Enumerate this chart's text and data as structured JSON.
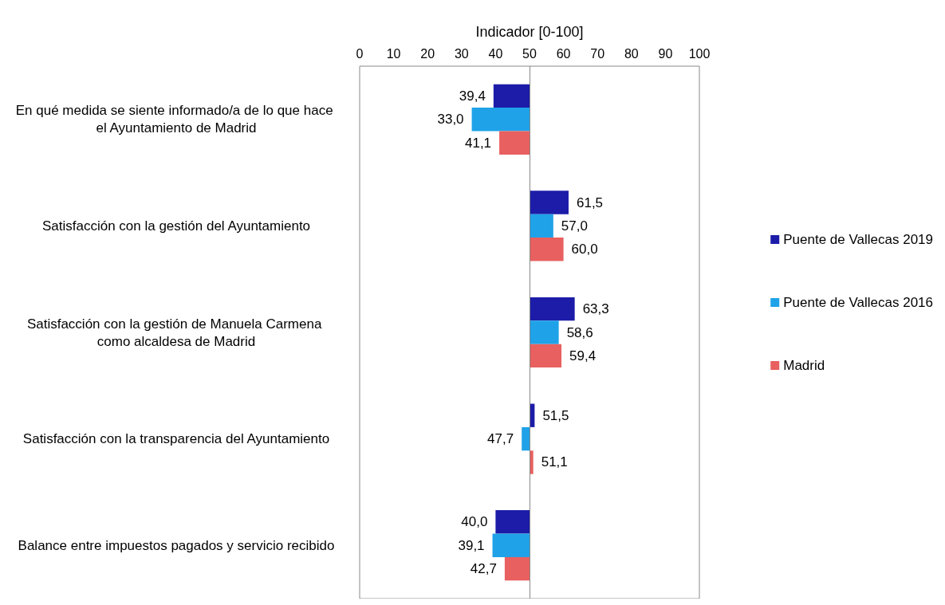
{
  "chart_data": {
    "type": "bar",
    "orientation": "horizontal",
    "xlabel": "Indicador [0-100]",
    "categories": [
      "En qué medida se siente informado/a de lo que hace el Ayuntamiento de Madrid",
      "Satisfacción con la gestión del Ayuntamiento",
      "Satisfacción con la gestión de Manuela Carmena como alcaldesa de Madrid",
      "Satisfacción con la transparencia del Ayuntamiento",
      "Balance entre impuestos pagados y servicio recibido"
    ],
    "series": [
      {
        "name": "Puente de Vallecas 2019",
        "color": "#1c1ca8",
        "base": [
          50,
          50,
          50,
          50,
          50
        ],
        "values": [
          -10.6,
          11.5,
          13.3,
          1.5,
          -10.0
        ],
        "value_labels": [
          "39,4",
          "61,5",
          "63,3",
          "51,5",
          "40,0"
        ]
      },
      {
        "name": "Puente de Vallecas 2016",
        "color": "#1fa2e8",
        "base": [
          50,
          50,
          50,
          50,
          50
        ],
        "values": [
          -17.0,
          7.0,
          8.6,
          -2.3,
          -10.9
        ],
        "value_labels": [
          "33,0",
          "57,0",
          "58,6",
          "47,7",
          "39,1"
        ]
      },
      {
        "name": "Madrid",
        "color": "#e8605f",
        "base": [
          50,
          50,
          50,
          50,
          50
        ],
        "values": [
          -8.9,
          10.0,
          9.4,
          1.1,
          -7.3
        ],
        "value_labels": [
          "41,1",
          "60,0",
          "59,4",
          "51,1",
          "42,7"
        ]
      }
    ],
    "xlim": [
      0,
      100
    ],
    "xticks": [
      0,
      10,
      20,
      30,
      40,
      50,
      60,
      70,
      80,
      90,
      100
    ],
    "ref_lines": [
      {
        "axis": "x",
        "value": 50,
        "color": "#888888"
      }
    ],
    "grid": false,
    "legend": "right"
  }
}
